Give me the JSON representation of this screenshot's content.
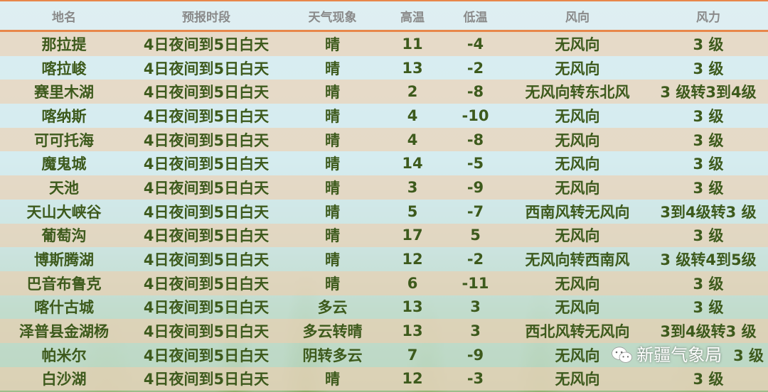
{
  "headers": [
    "地名",
    "预报时段",
    "天气现象",
    "高温",
    "低温",
    "风向",
    "风力"
  ],
  "rows": [
    [
      "那拉提",
      "4日夜间到5日白天",
      "晴",
      "11",
      "-4",
      "无风向",
      "3 级"
    ],
    [
      "喀拉峻",
      "4日夜间到5日白天",
      "晴",
      "13",
      "-2",
      "无风向",
      "3 级"
    ],
    [
      "赛里木湖",
      "4日夜间到5日白天",
      "晴",
      "2",
      "-8",
      "无风向转东北风",
      "3 级转3到4级"
    ],
    [
      "喀纳斯",
      "4日夜间到5日白天",
      "晴",
      "4",
      "-10",
      "无风向",
      "3 级"
    ],
    [
      "可可托海",
      "4日夜间到5日白天",
      "晴",
      "4",
      "-8",
      "无风向",
      "3 级"
    ],
    [
      "魔鬼城",
      "4日夜间到5日白天",
      "晴",
      "14",
      "-5",
      "无风向",
      "3 级"
    ],
    [
      "天池",
      "4日夜间到5日白天",
      "晴",
      "3",
      "-9",
      "无风向",
      "3 级"
    ],
    [
      "天山大峡谷",
      "4日夜间到5日白天",
      "晴",
      "5",
      "-7",
      "西南风转无风向",
      "3到4级转3 级"
    ],
    [
      "葡萄沟",
      "4日夜间到5日白天",
      "晴",
      "17",
      "5",
      "无风向",
      "3 级"
    ],
    [
      "博斯腾湖",
      "4日夜间到5日白天",
      "晴",
      "12",
      "-2",
      "无风向转西南风",
      "3 级转4到5级"
    ],
    [
      "巴音布鲁克",
      "4日夜间到5日白天",
      "晴",
      "6",
      "-11",
      "无风向",
      "3 级"
    ],
    [
      "喀什古城",
      "4日夜间到5日白天",
      "多云",
      "13",
      "3",
      "无风向",
      "3 级"
    ],
    [
      "泽普县金湖杨",
      "4日夜间到5日白天",
      "多云转晴",
      "13",
      "3",
      "西北风转无风向",
      "3到4级转3 级"
    ],
    [
      "帕米尔",
      "4日夜间到5日白天",
      "阴转多云",
      "7",
      "-9",
      "无风向",
      "3 级"
    ],
    [
      "白沙湖",
      "4日夜间到5日白天",
      "晴",
      "12",
      "-3",
      "无风向",
      "3 级"
    ]
  ],
  "watermark": {
    "icon": "wechat-icon",
    "text": "新疆气象局"
  }
}
